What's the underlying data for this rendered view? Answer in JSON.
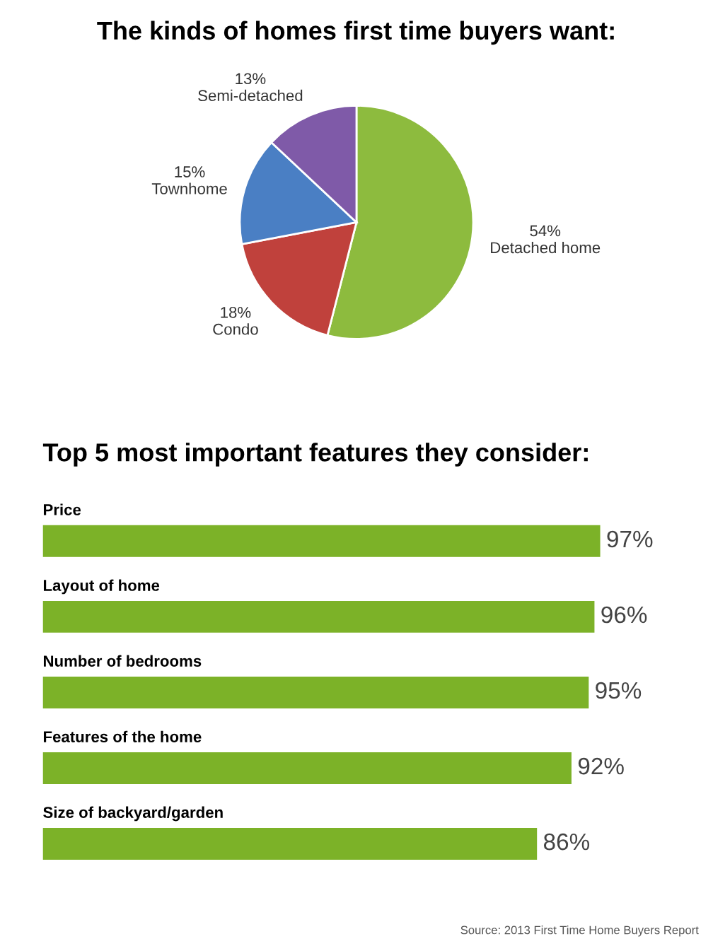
{
  "chart_data": [
    {
      "type": "pie",
      "title": "The kinds of homes first time buyers want:",
      "categories": [
        "Detached home",
        "Condo",
        "Townhome",
        "Semi-detached"
      ],
      "values": [
        54,
        18,
        15,
        13
      ],
      "colors": [
        "#8dbb3e",
        "#c0413c",
        "#4a7fc4",
        "#7f5aa8"
      ],
      "value_labels": [
        "54%",
        "18%",
        "15%",
        "13%"
      ]
    },
    {
      "type": "bar",
      "orientation": "horizontal",
      "title": "Top 5 most important features they consider:",
      "categories": [
        "Price",
        "Layout of home",
        "Number of bedrooms",
        "Features of the home",
        "Size of backyard/garden"
      ],
      "values": [
        97,
        96,
        95,
        92,
        86
      ],
      "color": "#7cb228",
      "value_labels": [
        "97%",
        "96%",
        "95%",
        "92%",
        "86%"
      ],
      "annotations": [
        "Source: 2013 First Time Home Buyers Report"
      ]
    }
  ]
}
